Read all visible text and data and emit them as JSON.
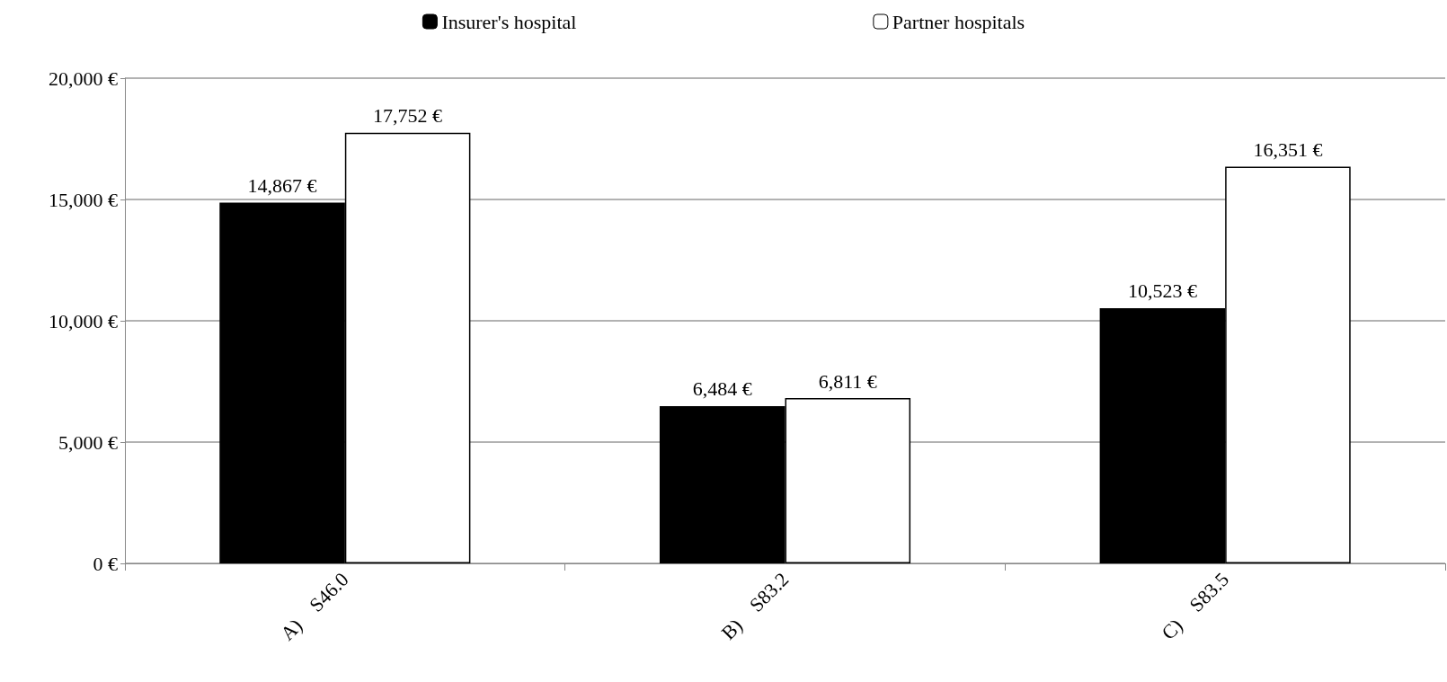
{
  "chart_data": {
    "type": "bar",
    "categories": [
      "A)    S46.0",
      "B)    S83.2",
      "C)    S83.5"
    ],
    "series": [
      {
        "name": "Insurer's hospital",
        "color": "#000000",
        "values": [
          14867,
          6484,
          10523
        ],
        "value_labels": [
          "14,867 €",
          "6,484 €",
          "10,523 €"
        ]
      },
      {
        "name": "Partner hospitals",
        "color": "#ffffff",
        "values": [
          17752,
          6811,
          16351
        ],
        "value_labels": [
          "17,752 €",
          "6,811 €",
          "16,351 €"
        ]
      }
    ],
    "ylim": [
      0,
      20000
    ],
    "yticks": [
      {
        "value": 0,
        "label": "0 €"
      },
      {
        "value": 5000,
        "label": "5,000 €"
      },
      {
        "value": 10000,
        "label": "10,000 €"
      },
      {
        "value": 15000,
        "label": "15,000 €"
      },
      {
        "value": 20000,
        "label": "20,000 €"
      }
    ],
    "grid": "y",
    "legend": "top"
  }
}
